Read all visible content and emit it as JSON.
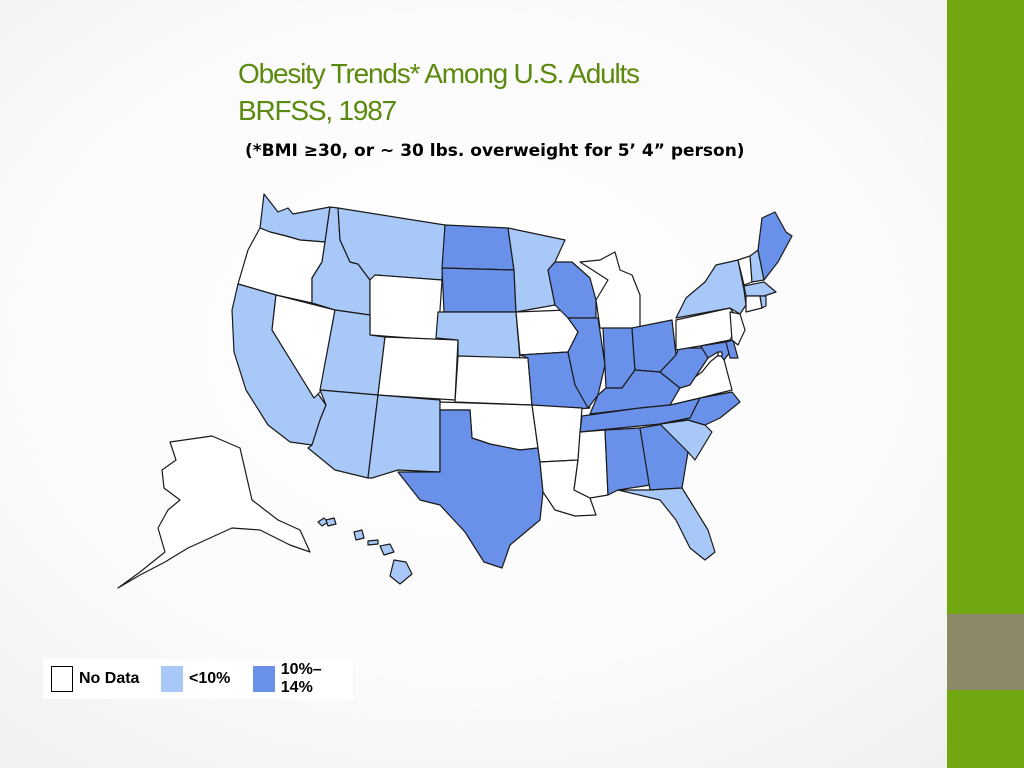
{
  "slide": {
    "title_line1": "Obesity Trends* Among U.S. Adults",
    "title_line2": "BRFSS, 1987",
    "subtitle": "(*BMI ≥30, or ~ 30 lbs. overweight for 5’ 4” person)"
  },
  "colors": {
    "no_data": "#ffffff",
    "lt10": "#a8c8f8",
    "p10_14": "#6a91ea",
    "title": "#5b8a0e",
    "side_bar": "#73a711",
    "side_accent": "#8b8966"
  },
  "legend": [
    {
      "key": "no_data",
      "label": "No Data"
    },
    {
      "key": "lt10",
      "label": "<10%"
    },
    {
      "key": "p10_14",
      "label": "10%–14%"
    }
  ],
  "map_data": {
    "year": 1987,
    "states": {
      "WA": "lt10",
      "OR": "no_data",
      "CA": "lt10",
      "NV": "no_data",
      "ID": "lt10",
      "MT": "lt10",
      "WY": "no_data",
      "UT": "lt10",
      "AZ": "lt10",
      "CO": "no_data",
      "NM": "lt10",
      "ND": "p10_14",
      "SD": "p10_14",
      "NE": "lt10",
      "KS": "no_data",
      "OK": "no_data",
      "TX": "p10_14",
      "MN": "lt10",
      "IA": "no_data",
      "MO": "p10_14",
      "AR": "no_data",
      "LA": "no_data",
      "WI": "p10_14",
      "IL": "p10_14",
      "MI": "no_data",
      "IN": "p10_14",
      "OH": "p10_14",
      "KY": "p10_14",
      "TN": "p10_14",
      "MS": "no_data",
      "AL": "p10_14",
      "GA": "p10_14",
      "FL": "lt10",
      "SC": "lt10",
      "NC": "p10_14",
      "VA": "no_data",
      "WV": "p10_14",
      "MD": "p10_14",
      "DE": "p10_14",
      "PA": "no_data",
      "NJ": "no_data",
      "NY": "lt10",
      "CT": "no_data",
      "RI": "lt10",
      "MA": "lt10",
      "VT": "no_data",
      "NH": "lt10",
      "ME": "p10_14",
      "AK": "no_data",
      "HI": "lt10",
      "DC": "no_data"
    }
  }
}
